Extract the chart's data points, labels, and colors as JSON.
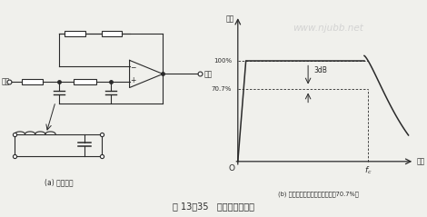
{
  "bg_color": "#f0f0ec",
  "title_text": "图 13－35   有源低通滤波器",
  "label_a": "(a) 仿真电感",
  "label_b": "(b) 截止频率处于增益降到最大值70.7%处",
  "watermark": "www.njubb.net",
  "gain_label": "增益",
  "freq_label": "频率",
  "label_100": "100%",
  "label_707": "70.7%",
  "label_3dB": "3dB",
  "label_fc": "$f_c$",
  "label_O": "O"
}
